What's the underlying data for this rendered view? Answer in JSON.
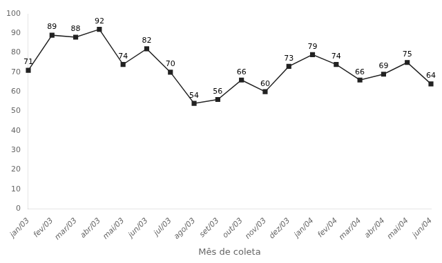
{
  "chart_data": {
    "type": "line",
    "xlabel": "Mês de coleta",
    "categories": [
      "jan/03",
      "fev/03",
      "mar/03",
      "abr/03",
      "mai/03",
      "jun/03",
      "jul/03",
      "ago/03",
      "set/03",
      "out/03",
      "nov/03",
      "dez/03",
      "jan/04",
      "fev/04",
      "mar/04",
      "abr/04",
      "mai/04",
      "jun/04"
    ],
    "values": [
      71,
      89,
      88,
      92,
      74,
      82,
      70,
      54,
      56,
      66,
      60,
      73,
      79,
      74,
      66,
      69,
      75,
      64
    ],
    "color": "#222222",
    "marker": "square",
    "ylim": [
      0,
      100
    ],
    "yticks": [
      0,
      10,
      20,
      30,
      40,
      50,
      60,
      70,
      80,
      90,
      100
    ],
    "grid": false,
    "data_labels": true
  }
}
